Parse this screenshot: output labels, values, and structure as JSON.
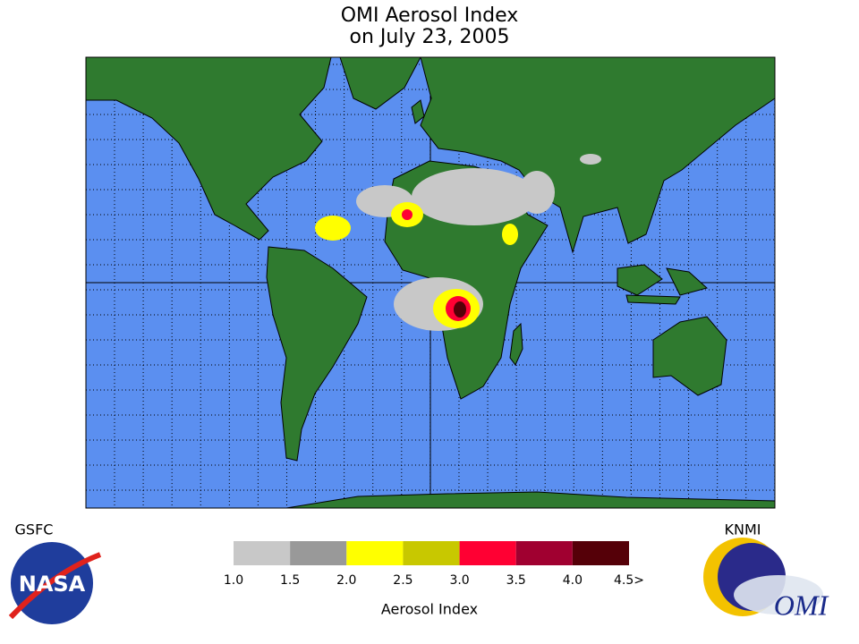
{
  "title": [
    "OMI Aerosol Index",
    "on July 23, 2005"
  ],
  "legend": {
    "colors": [
      "#c8c8c8",
      "#999999",
      "#ffff00",
      "#c8c800",
      "#ff0033",
      "#a00030",
      "#550008"
    ],
    "labels": [
      "1.0",
      "1.5",
      "2.0",
      "2.5",
      "3.0",
      "3.5",
      "4.0",
      "4.5>"
    ],
    "title": "Aerosol Index"
  },
  "logos": {
    "left_caption": "GSFC",
    "left_logo": "NASA",
    "right_caption": "KNMI",
    "right_logo": "OMI"
  }
}
